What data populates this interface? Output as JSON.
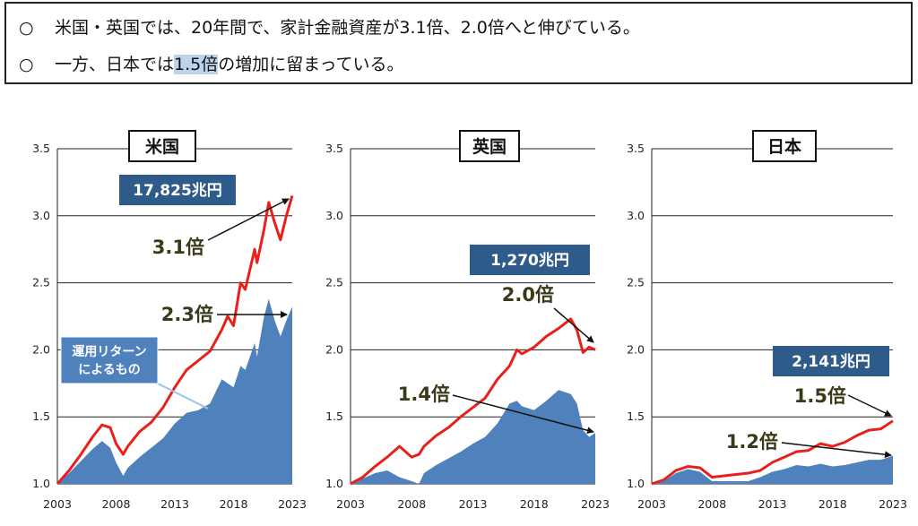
{
  "bullets": [
    {
      "marker": "○",
      "text": "米国・英国では、20年間で、家計金融資産が3.1倍、2.0倍へと伸びている。"
    },
    {
      "marker": "○",
      "pre": "一方、日本では",
      "highlight": "1.5倍",
      "post": "の増加に留まっている。"
    }
  ],
  "colors": {
    "total": "#e8201c",
    "returns": "#4f81bd",
    "label_box": "#2f5b8a",
    "multiplier_text": "#3a3a1a"
  },
  "chart_data": [
    {
      "type": "area",
      "title": "米国",
      "ylim": [
        1.0,
        3.5
      ],
      "yticks": [
        "1.0",
        "1.5",
        "2.0",
        "2.5",
        "3.0",
        "3.5"
      ],
      "xlim": [
        2003,
        2023
      ],
      "xticks": [
        "2003",
        "2008",
        "2013",
        "2018",
        "2023"
      ],
      "amount_label": "17,825兆円",
      "annotations": {
        "total_multiplier": "3.1倍",
        "returns_multiplier": "2.3倍",
        "returns_label": [
          "運用リターン",
          "によるもの"
        ]
      },
      "series": [
        {
          "kind": "line",
          "x": [
            2003,
            2004,
            2005,
            2006,
            2006.8,
            2007.5,
            2008,
            2008.6,
            2009,
            2010,
            2011,
            2012,
            2013,
            2014,
            2015,
            2016,
            2017,
            2017.5,
            2018,
            2018.6,
            2019,
            2019.8,
            2020,
            2020.6,
            2021,
            2021.5,
            2022,
            2022.5,
            2023
          ],
          "y": [
            1.0,
            1.1,
            1.22,
            1.35,
            1.44,
            1.42,
            1.3,
            1.22,
            1.28,
            1.39,
            1.46,
            1.57,
            1.72,
            1.85,
            1.92,
            1.99,
            2.15,
            2.25,
            2.18,
            2.5,
            2.45,
            2.75,
            2.65,
            2.9,
            3.1,
            2.95,
            2.82,
            3.0,
            3.15
          ]
        },
        {
          "kind": "area",
          "x": [
            2003,
            2004,
            2005,
            2006,
            2006.8,
            2007.5,
            2008,
            2008.6,
            2009,
            2010,
            2011,
            2012,
            2013,
            2014,
            2015,
            2016,
            2017,
            2018,
            2018.6,
            2019,
            2019.8,
            2020,
            2020.6,
            2021,
            2021.5,
            2022,
            2022.5,
            2023
          ],
          "y": [
            1.0,
            1.08,
            1.17,
            1.26,
            1.32,
            1.27,
            1.16,
            1.06,
            1.12,
            1.2,
            1.27,
            1.34,
            1.45,
            1.53,
            1.55,
            1.6,
            1.78,
            1.72,
            1.88,
            1.85,
            2.05,
            1.95,
            2.25,
            2.38,
            2.22,
            2.1,
            2.22,
            2.32
          ]
        }
      ]
    },
    {
      "type": "area",
      "title": "英国",
      "ylim": [
        1.0,
        3.5
      ],
      "yticks": [
        "1.0",
        "1.5",
        "2.0",
        "2.5",
        "3.0",
        "3.5"
      ],
      "xlim": [
        2003,
        2023
      ],
      "xticks": [
        "2003",
        "2008",
        "2013",
        "2018",
        "2023"
      ],
      "amount_label": "1,270兆円",
      "annotations": {
        "total_multiplier": "2.0倍",
        "returns_multiplier": "1.4倍"
      },
      "series": [
        {
          "kind": "line",
          "x": [
            2003,
            2004,
            2005,
            2006,
            2007,
            2008,
            2008.6,
            2009,
            2010,
            2011,
            2012,
            2013,
            2014,
            2015,
            2016,
            2016.6,
            2017,
            2018,
            2019,
            2020,
            2021,
            2021.5,
            2022,
            2022.5,
            2023
          ],
          "y": [
            1.0,
            1.05,
            1.13,
            1.2,
            1.28,
            1.2,
            1.22,
            1.28,
            1.36,
            1.42,
            1.5,
            1.57,
            1.64,
            1.78,
            1.88,
            2.0,
            1.97,
            2.02,
            2.1,
            2.16,
            2.23,
            2.15,
            1.98,
            2.02,
            2.0
          ]
        },
        {
          "kind": "area",
          "x": [
            2003,
            2004,
            2005,
            2006,
            2007,
            2008,
            2008.6,
            2009,
            2010,
            2011,
            2012,
            2013,
            2014,
            2015,
            2016,
            2016.6,
            2017,
            2018,
            2019,
            2020,
            2021,
            2021.5,
            2022,
            2022.5,
            2023
          ],
          "y": [
            1.0,
            1.04,
            1.08,
            1.1,
            1.05,
            1.02,
            1.0,
            1.08,
            1.14,
            1.19,
            1.24,
            1.3,
            1.35,
            1.45,
            1.6,
            1.62,
            1.58,
            1.55,
            1.62,
            1.7,
            1.67,
            1.6,
            1.4,
            1.35,
            1.38
          ]
        }
      ]
    },
    {
      "type": "area",
      "title": "日本",
      "ylim": [
        1.0,
        3.5
      ],
      "yticks": [
        "1.0",
        "1.5",
        "2.0",
        "2.5",
        "3.0",
        "3.5"
      ],
      "xlim": [
        2003,
        2023
      ],
      "xticks": [
        "2003",
        "2008",
        "2013",
        "2018",
        "2023"
      ],
      "amount_label": "2,141兆円",
      "annotations": {
        "total_multiplier": "1.5倍",
        "returns_multiplier": "1.2倍"
      },
      "series": [
        {
          "kind": "line",
          "x": [
            2003,
            2004,
            2005,
            2006,
            2007,
            2008,
            2009,
            2010,
            2011,
            2012,
            2013,
            2014,
            2015,
            2016,
            2017,
            2018,
            2019,
            2020,
            2021,
            2022,
            2023
          ],
          "y": [
            1.0,
            1.03,
            1.1,
            1.13,
            1.12,
            1.05,
            1.06,
            1.07,
            1.08,
            1.1,
            1.16,
            1.2,
            1.24,
            1.25,
            1.3,
            1.28,
            1.31,
            1.36,
            1.4,
            1.41,
            1.47
          ]
        },
        {
          "kind": "area",
          "x": [
            2003,
            2004,
            2005,
            2006,
            2007,
            2008,
            2009,
            2010,
            2011,
            2012,
            2013,
            2014,
            2015,
            2016,
            2017,
            2018,
            2019,
            2020,
            2021,
            2022,
            2023
          ],
          "y": [
            1.0,
            1.02,
            1.08,
            1.11,
            1.09,
            1.02,
            1.02,
            1.02,
            1.02,
            1.05,
            1.09,
            1.11,
            1.14,
            1.13,
            1.15,
            1.13,
            1.14,
            1.16,
            1.18,
            1.18,
            1.21
          ]
        }
      ]
    }
  ]
}
